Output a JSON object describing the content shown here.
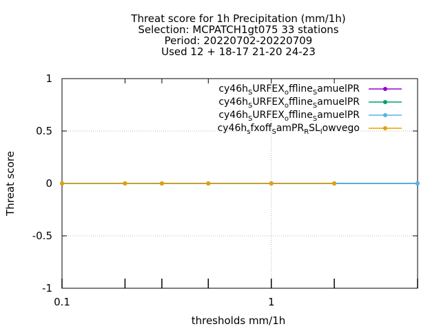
{
  "chart_data": {
    "type": "line",
    "title_lines": [
      "Threat score  for 1h Precipitation (mm/1h)",
      "Selection: MCPATCH1gt075      33 stations",
      "Period: 20220702-20220709",
      "Used  12 + 18-17 21-20 24-23"
    ],
    "xlabel": "thresholds mm/1h",
    "ylabel": "Threat score",
    "x_scale": "log",
    "xlim": [
      0.1,
      5
    ],
    "ylim": [
      -1,
      1
    ],
    "x_tick_labels": [
      {
        "value": 0.1,
        "label": "0.1"
      },
      {
        "value": 1,
        "label": "1"
      }
    ],
    "x_minor_ticks": [
      0.2,
      0.3,
      0.5,
      2,
      5
    ],
    "y_ticks": [
      {
        "value": 1,
        "label": "1"
      },
      {
        "value": 0.5,
        "label": "0.5"
      },
      {
        "value": 0,
        "label": "0"
      },
      {
        "value": -0.5,
        "label": "-0.5"
      },
      {
        "value": -1,
        "label": "-1"
      }
    ],
    "grid": true,
    "legend_position": "top-right",
    "series": [
      {
        "legend": [
          {
            "text": "cy46h",
            "sub": false
          },
          {
            "text": "S",
            "sub": true
          },
          {
            "text": "URFEX",
            "sub": false
          },
          {
            "text": "o",
            "sub": true
          },
          {
            "text": "ffline",
            "sub": false
          },
          {
            "text": "S",
            "sub": true
          },
          {
            "text": "amuelPR",
            "sub": false
          }
        ],
        "color": "#9400d3",
        "x": [
          0.1,
          0.2,
          0.3,
          0.5,
          1,
          2,
          5
        ],
        "y": [
          0,
          0,
          0,
          0,
          0,
          0,
          0
        ]
      },
      {
        "legend": [
          {
            "text": "cy46h",
            "sub": false
          },
          {
            "text": "S",
            "sub": true
          },
          {
            "text": "URFEX",
            "sub": false
          },
          {
            "text": "o",
            "sub": true
          },
          {
            "text": "ffline",
            "sub": false
          },
          {
            "text": "S",
            "sub": true
          },
          {
            "text": "amuelPR",
            "sub": false
          }
        ],
        "color": "#009e73",
        "x": [
          0.1,
          0.2,
          0.3,
          0.5,
          1,
          2,
          5
        ],
        "y": [
          0,
          0,
          0,
          0,
          0,
          0,
          0
        ]
      },
      {
        "legend": [
          {
            "text": "cy46h",
            "sub": false
          },
          {
            "text": "S",
            "sub": true
          },
          {
            "text": "URFEX",
            "sub": false
          },
          {
            "text": "o",
            "sub": true
          },
          {
            "text": "ffline",
            "sub": false
          },
          {
            "text": "S",
            "sub": true
          },
          {
            "text": "amuelPR",
            "sub": false
          }
        ],
        "color": "#56b4e9",
        "x": [
          0.1,
          0.2,
          0.3,
          0.5,
          1,
          2,
          5
        ],
        "y": [
          0,
          0,
          0,
          0,
          0,
          0,
          0
        ]
      },
      {
        "legend": [
          {
            "text": "cy46h",
            "sub": false
          },
          {
            "text": "s",
            "sub": true
          },
          {
            "text": "fxoff",
            "sub": false
          },
          {
            "text": "S",
            "sub": true
          },
          {
            "text": "amPR",
            "sub": false
          },
          {
            "text": "R",
            "sub": true
          },
          {
            "text": "SL",
            "sub": false
          },
          {
            "text": "l",
            "sub": true
          },
          {
            "text": "owvego",
            "sub": false
          }
        ],
        "color": "#e69f00",
        "x": [
          0.1,
          0.2,
          0.3,
          0.5,
          1,
          2
        ],
        "y": [
          0,
          0,
          0,
          0,
          0,
          0
        ]
      }
    ]
  }
}
